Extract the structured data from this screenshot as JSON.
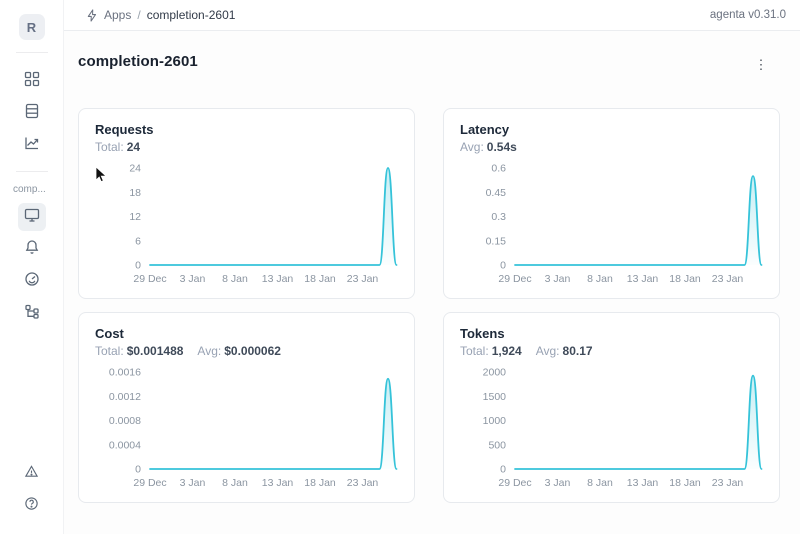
{
  "header": {
    "breadcrumb": {
      "apps": "Apps",
      "separator": "/",
      "current": "completion-2601"
    },
    "version": "agenta v0.31.0"
  },
  "sidebar": {
    "logo_letter": "R",
    "section_label": "comp..."
  },
  "page": {
    "title": "completion-2601"
  },
  "colors": {
    "line": "#35c3d9",
    "axis_text": "#8b95a1"
  },
  "chart_data": [
    {
      "id": "requests",
      "type": "line",
      "title": "Requests",
      "stats": [
        {
          "label": "Total:",
          "value": "24"
        }
      ],
      "y_ticks": [
        "24",
        "18",
        "12",
        "6",
        "0"
      ],
      "y_max": 24,
      "x_labels": [
        "29 Dec",
        "3 Jan",
        "8 Jan",
        "13 Jan",
        "18 Jan",
        "23 Jan"
      ],
      "x_label_day_step": 5,
      "values": [
        0,
        0,
        0,
        0,
        0,
        0,
        0,
        0,
        0,
        0,
        0,
        0,
        0,
        0,
        0,
        0,
        0,
        0,
        0,
        0,
        0,
        0,
        0,
        0,
        0,
        0,
        0,
        0,
        24,
        0
      ]
    },
    {
      "id": "latency",
      "type": "line",
      "title": "Latency",
      "stats": [
        {
          "label": "Avg:",
          "value": "0.54s"
        }
      ],
      "y_ticks": [
        "0.6",
        "0.45",
        "0.3",
        "0.15",
        "0"
      ],
      "y_max": 0.6,
      "x_labels": [
        "29 Dec",
        "3 Jan",
        "8 Jan",
        "13 Jan",
        "18 Jan",
        "23 Jan"
      ],
      "x_label_day_step": 5,
      "values": [
        0,
        0,
        0,
        0,
        0,
        0,
        0,
        0,
        0,
        0,
        0,
        0,
        0,
        0,
        0,
        0,
        0,
        0,
        0,
        0,
        0,
        0,
        0,
        0,
        0,
        0,
        0,
        0,
        0.55,
        0
      ]
    },
    {
      "id": "cost",
      "type": "line",
      "title": "Cost",
      "stats": [
        {
          "label": "Total:",
          "value": "$0.001488"
        },
        {
          "label": "Avg:",
          "value": "$0.000062"
        }
      ],
      "y_ticks": [
        "0.0016",
        "0.0012",
        "0.0008",
        "0.0004",
        "0"
      ],
      "y_max": 0.0016,
      "x_labels": [
        "29 Dec",
        "3 Jan",
        "8 Jan",
        "13 Jan",
        "18 Jan",
        "23 Jan"
      ],
      "x_label_day_step": 5,
      "values": [
        0,
        0,
        0,
        0,
        0,
        0,
        0,
        0,
        0,
        0,
        0,
        0,
        0,
        0,
        0,
        0,
        0,
        0,
        0,
        0,
        0,
        0,
        0,
        0,
        0,
        0,
        0,
        0,
        0.001488,
        0
      ]
    },
    {
      "id": "tokens",
      "type": "line",
      "title": "Tokens",
      "stats": [
        {
          "label": "Total:",
          "value": "1,924"
        },
        {
          "label": "Avg:",
          "value": "80.17"
        }
      ],
      "y_ticks": [
        "2000",
        "1500",
        "1000",
        "500",
        "0"
      ],
      "y_max": 2000,
      "x_labels": [
        "29 Dec",
        "3 Jan",
        "8 Jan",
        "13 Jan",
        "18 Jan",
        "23 Jan"
      ],
      "x_label_day_step": 5,
      "values": [
        0,
        0,
        0,
        0,
        0,
        0,
        0,
        0,
        0,
        0,
        0,
        0,
        0,
        0,
        0,
        0,
        0,
        0,
        0,
        0,
        0,
        0,
        0,
        0,
        0,
        0,
        0,
        0,
        1924,
        0
      ]
    }
  ]
}
